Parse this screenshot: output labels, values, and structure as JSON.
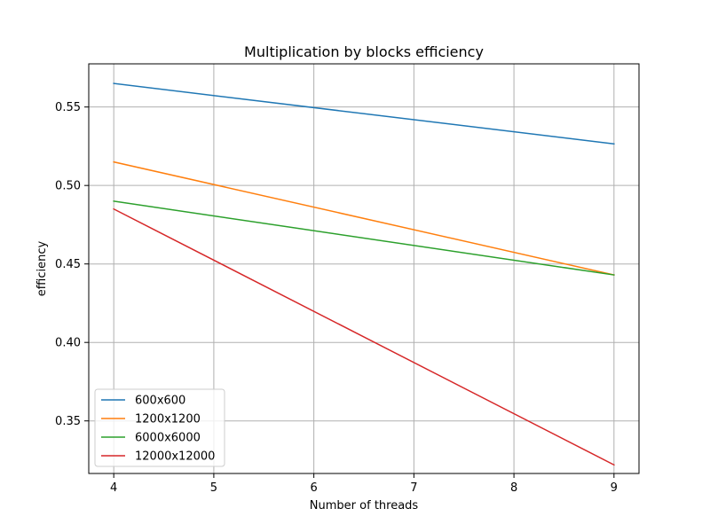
{
  "chart_data": {
    "type": "line",
    "title": "Multiplication by blocks efficiency",
    "xlabel": "Number of threads",
    "ylabel": "efficiency",
    "x": [
      4,
      9
    ],
    "xticks": [
      "4",
      "5",
      "6",
      "7",
      "8",
      "9"
    ],
    "yticks": [
      "0.35",
      "0.40",
      "0.45",
      "0.50",
      "0.55"
    ],
    "xlim": [
      3.75,
      9.25
    ],
    "ylim": [
      0.3165,
      0.5775
    ],
    "grid": true,
    "legend_position": "lower-left",
    "series": [
      {
        "name": "600x600",
        "values": [
          0.565,
          0.5265
        ],
        "color": "#1f77b4"
      },
      {
        "name": "1200x1200",
        "values": [
          0.515,
          0.443
        ],
        "color": "#ff7f0e"
      },
      {
        "name": "6000x6000",
        "values": [
          0.49,
          0.443
        ],
        "color": "#2ca02c"
      },
      {
        "name": "12000x12000",
        "values": [
          0.485,
          0.322
        ],
        "color": "#d62728"
      }
    ]
  }
}
